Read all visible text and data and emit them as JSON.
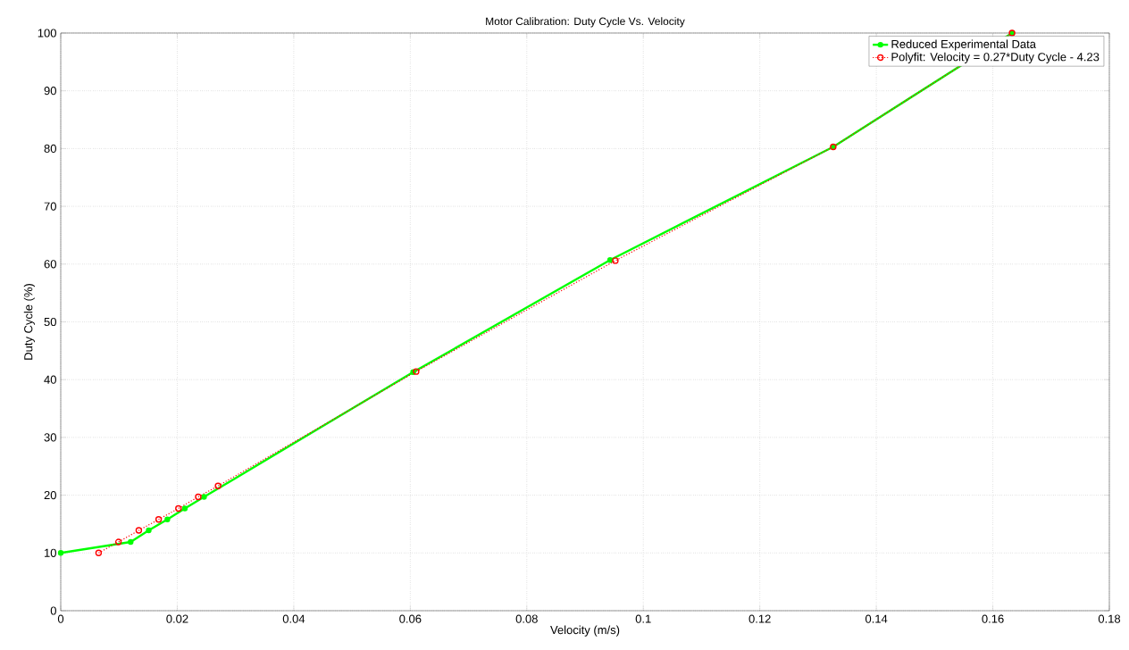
{
  "chart_data": {
    "type": "line",
    "title": "Motor Calibration: Duty Cycle Vs. Velocity",
    "xlabel": "Velocity (m/s)",
    "ylabel": "Duty Cycle (%)",
    "xlim": [
      0,
      0.18
    ],
    "ylim": [
      0,
      100
    ],
    "xticks": [
      0,
      0.02,
      0.04,
      0.06,
      0.08,
      0.1,
      0.12,
      0.14,
      0.16,
      0.18
    ],
    "yticks": [
      0,
      10,
      20,
      30,
      40,
      50,
      60,
      70,
      80,
      90,
      100
    ],
    "grid": true,
    "legend": "top right",
    "series": [
      {
        "name": "Reduced Experimental Data",
        "color": "#00ff00",
        "marker": "circle",
        "line_style": "solid",
        "x": [
          0,
          0.012,
          0.0151,
          0.0183,
          0.0213,
          0.0246,
          0.0605,
          0.0943,
          0.1326,
          0.1633
        ],
        "values": [
          10,
          11.9,
          13.9,
          15.8,
          17.7,
          19.7,
          41.3,
          60.7,
          80.3,
          100
        ]
      },
      {
        "name": "Polyfit: Velocity = 0.27*Duty Cycle - 4.23",
        "color": "#ff0000",
        "marker": "circle",
        "line_style": "dotted",
        "x": [
          0.0065,
          0.0099,
          0.0134,
          0.0168,
          0.0202,
          0.0236,
          0.027,
          0.061,
          0.0952,
          0.1326,
          0.1633
        ],
        "values": [
          10,
          11.9,
          13.9,
          15.8,
          17.7,
          19.7,
          21.6,
          41.4,
          60.6,
          80.3,
          100
        ]
      }
    ]
  }
}
